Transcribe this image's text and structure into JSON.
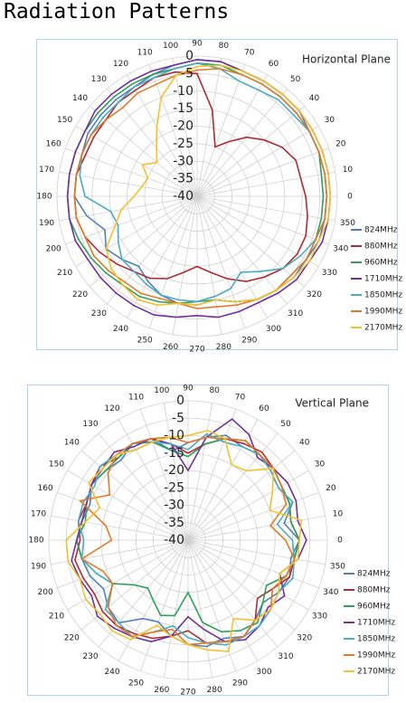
{
  "title": "Radiation Patterns",
  "chart_data": [
    {
      "type": "polar",
      "title": "Horizontal Plane",
      "x": [
        0,
        10,
        20,
        30,
        40,
        50,
        60,
        70,
        80,
        90,
        100,
        110,
        120,
        130,
        140,
        150,
        160,
        170,
        180,
        190,
        200,
        210,
        220,
        230,
        240,
        250,
        260,
        270,
        280,
        290,
        300,
        310,
        320,
        330,
        340,
        350
      ],
      "ylim": [
        -40,
        0
      ],
      "yticks": [
        -40,
        -35,
        -30,
        -25,
        -20,
        -15,
        -10,
        -5,
        0
      ],
      "grid": true,
      "legend": "lower right",
      "series": [
        {
          "name": "824MHz",
          "color": "#4f81bd",
          "values": [
            -3,
            -3,
            -3,
            -3,
            -2,
            -2,
            -2,
            -2,
            -1,
            -1,
            -2,
            -3,
            -4,
            -4,
            -4,
            -4,
            -5,
            -5,
            -5,
            -8,
            -12,
            -10,
            -12,
            -14,
            -12,
            -10,
            -9,
            -9,
            -10,
            -8,
            -6,
            -5,
            -4,
            -4,
            -3,
            -3
          ]
        },
        {
          "name": "880MHz",
          "color": "#b22a2e",
          "values": [
            -9,
            -10,
            -10,
            -12,
            -15,
            -18,
            -22,
            -25,
            -15,
            -5,
            -4,
            -4,
            -5,
            -5,
            -6,
            -6,
            -6,
            -5,
            -5,
            -5,
            -6,
            -8,
            -10,
            -12,
            -13,
            -15,
            -18,
            -20,
            -18,
            -15,
            -12,
            -10,
            -8,
            -7,
            -7,
            -8
          ]
        },
        {
          "name": "960MHz",
          "color": "#2ea05a",
          "values": [
            -4,
            -4,
            -3,
            -3,
            -3,
            -3,
            -3,
            -3,
            -2,
            -2,
            -3,
            -3,
            -3,
            -3,
            -3,
            -3,
            -3,
            -3,
            -3,
            -3,
            -4,
            -5,
            -6,
            -7,
            -7,
            -8,
            -9,
            -10,
            -10,
            -8,
            -6,
            -5,
            -5,
            -4,
            -4,
            -4
          ]
        },
        {
          "name": "1710MHz",
          "color": "#7030a0",
          "values": [
            -2,
            -2,
            -2,
            -2,
            -2,
            -2,
            -2,
            -2,
            -1,
            -1,
            -2,
            -2,
            -2,
            -2,
            -2,
            -3,
            -3,
            -3,
            -3,
            -3,
            -3,
            -4,
            -4,
            -4,
            -4,
            -4,
            -5,
            -6,
            -5,
            -5,
            -5,
            -4,
            -3,
            -3,
            -2,
            -2
          ]
        },
        {
          "name": "1850MHz",
          "color": "#4bacc6",
          "values": [
            -3,
            -3,
            -3,
            -3,
            -4,
            -4,
            -5,
            -5,
            -3,
            -2,
            -3,
            -4,
            -4,
            -5,
            -5,
            -5,
            -5,
            -6,
            -8,
            -15,
            -16,
            -14,
            -12,
            -12,
            -11,
            -10,
            -10,
            -10,
            -11,
            -12,
            -15,
            -12,
            -8,
            -6,
            -4,
            -3
          ]
        },
        {
          "name": "1990MHz",
          "color": "#e07b29",
          "values": [
            -3,
            -3,
            -3,
            -3,
            -3,
            -3,
            -3,
            -3,
            -3,
            -4,
            -5,
            -6,
            -6,
            -7,
            -6,
            -5,
            -5,
            -5,
            -5,
            -5,
            -6,
            -6,
            -7,
            -8,
            -8,
            -9,
            -9,
            -8,
            -8,
            -7,
            -6,
            -5,
            -5,
            -4,
            -4,
            -3
          ]
        },
        {
          "name": "2170MHz",
          "color": "#f5c02c",
          "values": [
            -2,
            -2,
            -2,
            -2,
            -2,
            -2,
            -2,
            -2,
            -2,
            -3,
            -5,
            -10,
            -17,
            -22,
            -25,
            -22,
            -25,
            -24,
            -22,
            -18,
            -15,
            -10,
            -8,
            -7,
            -6,
            -7,
            -9,
            -9,
            -10,
            -8,
            -6,
            -5,
            -4,
            -3,
            -3,
            -2
          ]
        }
      ]
    },
    {
      "type": "polar",
      "title": "Vertical Plane",
      "x": [
        0,
        10,
        20,
        30,
        40,
        50,
        60,
        70,
        80,
        90,
        100,
        110,
        120,
        130,
        140,
        150,
        160,
        170,
        180,
        190,
        200,
        210,
        220,
        230,
        240,
        250,
        260,
        270,
        280,
        290,
        300,
        310,
        320,
        330,
        340,
        350
      ],
      "ylim": [
        -40,
        0
      ],
      "yticks": [
        -40,
        -35,
        -30,
        -25,
        -20,
        -15,
        -10,
        -5,
        0
      ],
      "grid": true,
      "legend": "lower right",
      "series": [
        {
          "name": "824MHz",
          "color": "#4f81bd",
          "values": [
            -8,
            -12,
            -8,
            -10,
            -9,
            -8,
            -9,
            -8,
            -10,
            -12,
            -14,
            -9,
            -8,
            -10,
            -9,
            -8,
            -10,
            -9,
            -8,
            -9,
            -10,
            -12,
            -10,
            -9,
            -14,
            -15,
            -12,
            -10,
            -9,
            -10,
            -8,
            -10,
            -12,
            -10,
            -9,
            -10
          ]
        },
        {
          "name": "880MHz",
          "color": "#b22a2e",
          "values": [
            -8,
            -10,
            -9,
            -9,
            -8,
            -7,
            -8,
            -9,
            -12,
            -15,
            -12,
            -9,
            -8,
            -9,
            -7,
            -8,
            -9,
            -8,
            -9,
            -7,
            -8,
            -9,
            -8,
            -8,
            -9,
            -10,
            -12,
            -14,
            -10,
            -9,
            -8,
            -10,
            -14,
            -12,
            -9,
            -9
          ]
        },
        {
          "name": "960MHz",
          "color": "#2ea05a",
          "values": [
            -8,
            -10,
            -9,
            -9,
            -8,
            -8,
            -7,
            -9,
            -12,
            -16,
            -14,
            -10,
            -8,
            -9,
            -9,
            -8,
            -9,
            -10,
            -8,
            -9,
            -12,
            -15,
            -20,
            -22,
            -20,
            -17,
            -18,
            -25,
            -16,
            -12,
            -10,
            -9,
            -12,
            -14,
            -10,
            -9
          ]
        },
        {
          "name": "1710MHz",
          "color": "#7030a0",
          "values": [
            -6,
            -8,
            -7,
            -7,
            -8,
            -9,
            -5,
            -3,
            -10,
            -20,
            -12,
            -9,
            -9,
            -7,
            -8,
            -8,
            -9,
            -9,
            -8,
            -6,
            -7,
            -8,
            -6,
            -7,
            -8,
            -9,
            -12,
            -18,
            -14,
            -9,
            -7,
            -8,
            -10,
            -8,
            -12,
            -8
          ]
        },
        {
          "name": "1850MHz",
          "color": "#4bacc6",
          "values": [
            -10,
            -14,
            -8,
            -10,
            -9,
            -8,
            -9,
            -10,
            -9,
            -14,
            -12,
            -10,
            -10,
            -8,
            -7,
            -9,
            -8,
            -8,
            -10,
            -9,
            -12,
            -15,
            -9,
            -9,
            -8,
            -12,
            -15,
            -12,
            -10,
            -8,
            -8,
            -8,
            -9,
            -10,
            -8,
            -9
          ]
        },
        {
          "name": "1990MHz",
          "color": "#e07b29",
          "values": [
            -12,
            -16,
            -10,
            -9,
            -8,
            -8,
            -7,
            -9,
            -10,
            -12,
            -10,
            -9,
            -8,
            -8,
            -10,
            -14,
            -7,
            -16,
            -18,
            -9,
            -14,
            -15,
            -10,
            -8,
            -8,
            -12,
            -14,
            -10,
            -10,
            -9,
            -8,
            -10,
            -9,
            -12,
            -10,
            -9
          ]
        },
        {
          "name": "2170MHz",
          "color": "#f5c02c",
          "values": [
            -8,
            -7,
            -15,
            -12,
            -8,
            -14,
            -15,
            -9,
            -8,
            -10,
            -10,
            -10,
            -10,
            -8,
            -8,
            -7,
            -13,
            -10,
            -5,
            -5,
            -7,
            -6,
            -7,
            -6,
            -7,
            -14,
            -12,
            -10,
            -8,
            -6,
            -14,
            -10,
            -9,
            -10,
            -12,
            -8
          ]
        }
      ]
    }
  ]
}
